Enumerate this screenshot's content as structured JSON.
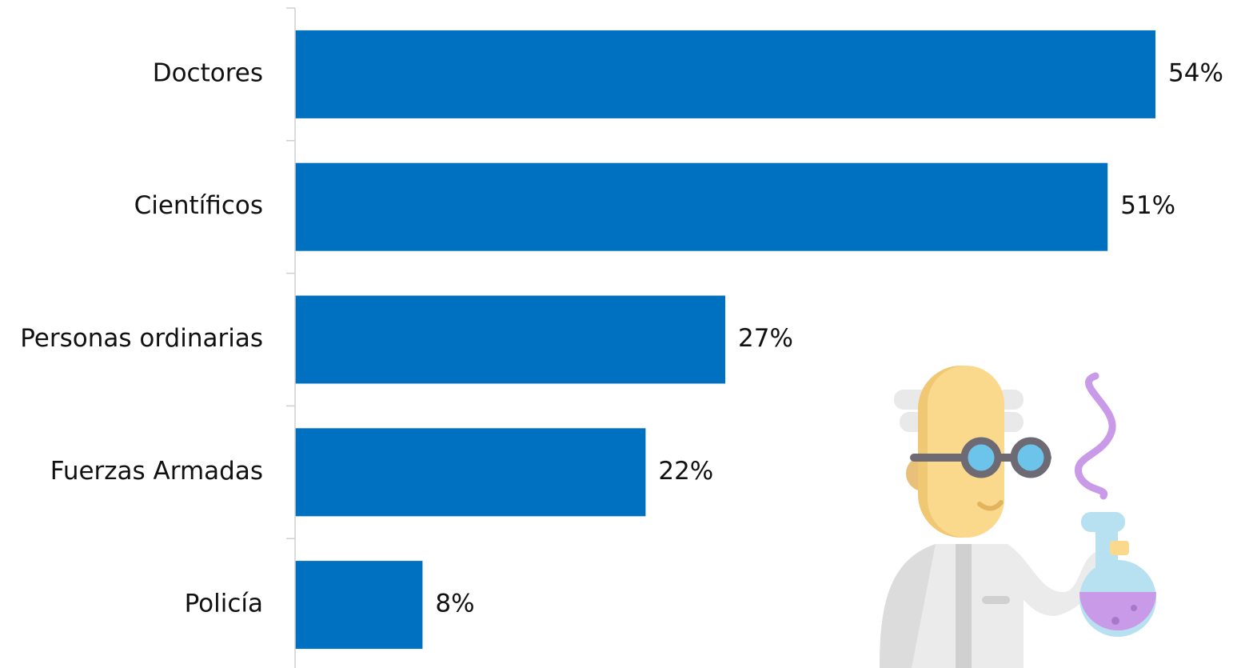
{
  "chart_data": {
    "type": "bar",
    "orientation": "horizontal",
    "categories": [
      "Doctores",
      "Científicos",
      "Personas ordinarias",
      "Fuerzas Armadas",
      "Policía"
    ],
    "values": [
      54,
      51,
      27,
      22,
      8
    ],
    "value_labels": [
      "54%",
      "51%",
      "27%",
      "22%",
      "8%"
    ],
    "color": "#0070c0"
  }
}
